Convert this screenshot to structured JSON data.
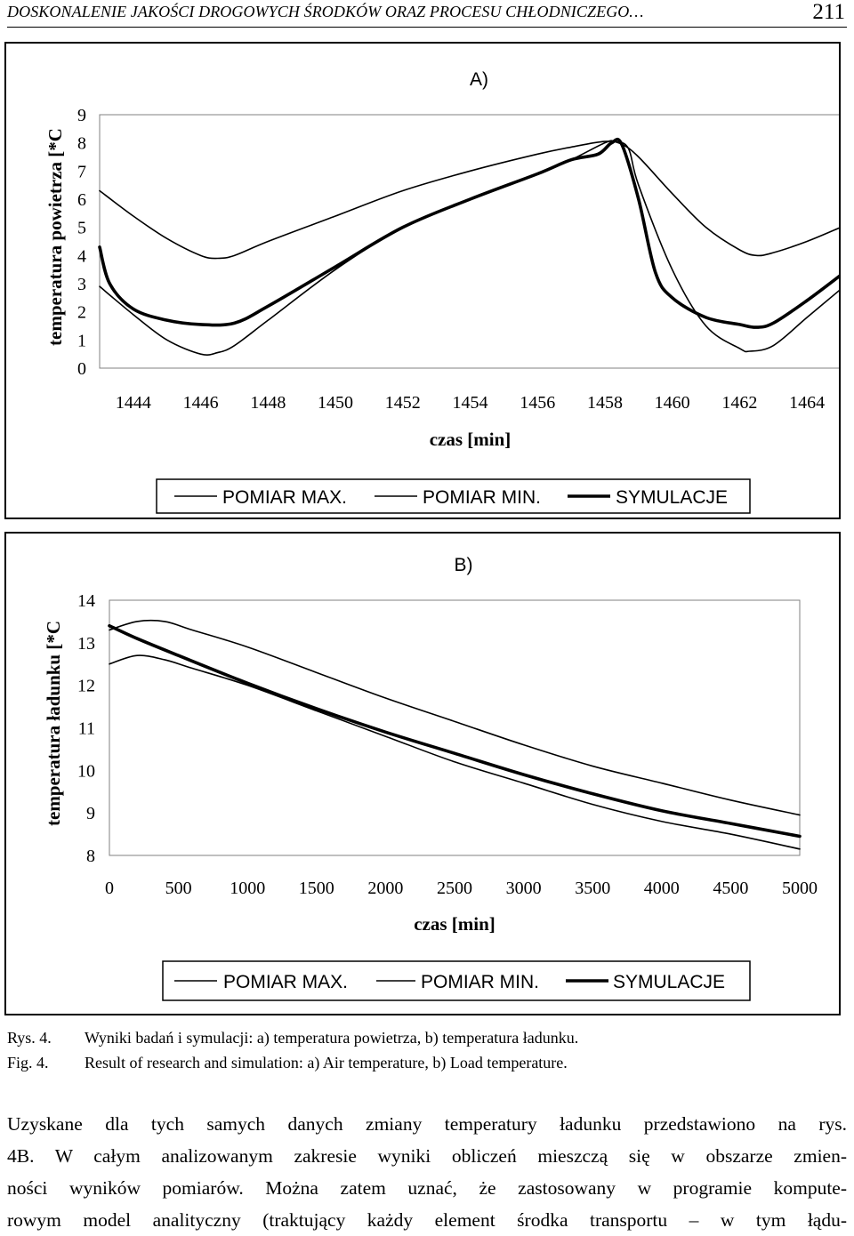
{
  "header": {
    "title": "DOSKONALENIE JAKOŚCI DROGOWYCH ŚRODKÓW ORAZ PROCESU CHŁODNICZEGO…",
    "page_number": "211"
  },
  "chart_data": [
    {
      "type": "line",
      "panel_label": "A)",
      "title": "A)",
      "xlabel": "czas [min]",
      "ylabel": "temperatura powietrza [*C",
      "xlim": [
        1443,
        1465
      ],
      "ylim": [
        0,
        9
      ],
      "x_ticks": [
        "1444",
        "1446",
        "1448",
        "1450",
        "1452",
        "1454",
        "1456",
        "1458",
        "1460",
        "1462",
        "1464"
      ],
      "y_ticks": [
        "0",
        "1",
        "2",
        "3",
        "4",
        "5",
        "6",
        "7",
        "8",
        "9"
      ],
      "legend": [
        "POMIAR MAX.",
        "POMIAR MIN.",
        "SYMULACJE"
      ],
      "legend_position": "bottom",
      "series": [
        {
          "name": "POMIAR MAX.",
          "x": [
            1443,
            1444,
            1445,
            1446,
            1446.5,
            1447,
            1448,
            1450,
            1452,
            1454,
            1456,
            1457,
            1458,
            1458.5,
            1459,
            1460,
            1461,
            1462,
            1462.5,
            1463,
            1464,
            1465
          ],
          "values": [
            6.3,
            5.4,
            4.6,
            4.0,
            3.9,
            4.0,
            4.5,
            5.4,
            6.3,
            7.0,
            7.6,
            7.85,
            8.05,
            7.95,
            7.5,
            6.2,
            5.0,
            4.2,
            4.0,
            4.1,
            4.5,
            5.0
          ]
        },
        {
          "name": "POMIAR MIN.",
          "x": [
            1443,
            1444,
            1445,
            1446,
            1446.5,
            1447,
            1448,
            1450,
            1452,
            1454,
            1456,
            1457,
            1458,
            1458.3,
            1458.7,
            1459,
            1460,
            1461,
            1462,
            1462.3,
            1463,
            1464,
            1465
          ],
          "values": [
            2.9,
            1.9,
            1.0,
            0.5,
            0.55,
            0.8,
            1.7,
            3.5,
            5.0,
            6.0,
            6.9,
            7.4,
            8.0,
            8.05,
            7.8,
            6.5,
            3.5,
            1.5,
            0.7,
            0.6,
            0.8,
            1.8,
            2.8
          ]
        },
        {
          "name": "SYMULACJE",
          "x": [
            1443,
            1443.3,
            1444,
            1445,
            1446,
            1447,
            1448,
            1450,
            1452,
            1454,
            1456,
            1457,
            1457.8,
            1458.2,
            1458.5,
            1459,
            1459.5,
            1460,
            1461,
            1462,
            1462.5,
            1463,
            1464,
            1465
          ],
          "values": [
            4.3,
            3.0,
            2.1,
            1.7,
            1.55,
            1.6,
            2.2,
            3.6,
            5.0,
            6.0,
            6.9,
            7.4,
            7.6,
            8.0,
            7.95,
            6.0,
            3.4,
            2.5,
            1.8,
            1.55,
            1.45,
            1.6,
            2.4,
            3.3
          ]
        }
      ]
    },
    {
      "type": "line",
      "panel_label": "B)",
      "title": "B)",
      "xlabel": "czas [min]",
      "ylabel": "temperatura ładunku [*C",
      "xlim": [
        0,
        5000
      ],
      "ylim": [
        8,
        14
      ],
      "x_ticks": [
        "0",
        "500",
        "1000",
        "1500",
        "2000",
        "2500",
        "3000",
        "3500",
        "4000",
        "4500",
        "5000"
      ],
      "y_ticks": [
        "8",
        "9",
        "10",
        "11",
        "12",
        "13",
        "14"
      ],
      "legend": [
        "POMIAR MAX.",
        "POMIAR MIN.",
        "SYMULACJE"
      ],
      "legend_position": "bottom",
      "series": [
        {
          "name": "POMIAR MAX.",
          "x": [
            0,
            200,
            400,
            600,
            1000,
            1500,
            2000,
            2500,
            3000,
            3500,
            4000,
            4500,
            5000
          ],
          "values": [
            13.3,
            13.5,
            13.5,
            13.3,
            12.9,
            12.3,
            11.7,
            11.15,
            10.6,
            10.1,
            9.7,
            9.3,
            8.95
          ]
        },
        {
          "name": "POMIAR MIN.",
          "x": [
            0,
            200,
            400,
            600,
            1000,
            1500,
            2000,
            2500,
            3000,
            3500,
            4000,
            4500,
            5000
          ],
          "values": [
            12.5,
            12.7,
            12.6,
            12.4,
            12.0,
            11.4,
            10.8,
            10.2,
            9.7,
            9.2,
            8.8,
            8.5,
            8.15
          ]
        },
        {
          "name": "SYMULACJE",
          "x": [
            0,
            200,
            500,
            1000,
            1500,
            2000,
            2500,
            3000,
            3500,
            4000,
            4500,
            5000
          ],
          "values": [
            13.4,
            13.1,
            12.7,
            12.05,
            11.45,
            10.9,
            10.4,
            9.9,
            9.45,
            9.05,
            8.75,
            8.45
          ]
        }
      ]
    }
  ],
  "captions": {
    "pl_label": "Rys. 4.",
    "pl_text": "Wyniki badań i symulacji: a) temperatura powietrza, b) temperatura ładunku.",
    "en_label": "Fig. 4.",
    "en_text": "Result of research and simulation: a) Air temperature, b) Load temperature."
  },
  "body": {
    "lines": [
      "Uzyskane dla tych samych danych zmiany temperatury ładunku przedstawiono na rys.",
      "4B. W całym analizowanym zakresie wyniki obliczeń mieszczą się w obszarze zmien-",
      "ności wyników pomiarów. Można zatem uznać, że zastosowany w programie kompute-",
      "rowym model analityczny (traktujący każdy element środka transportu – w tym łądu-"
    ]
  },
  "colors": {
    "ink": "#000000",
    "paper": "#ffffff"
  }
}
